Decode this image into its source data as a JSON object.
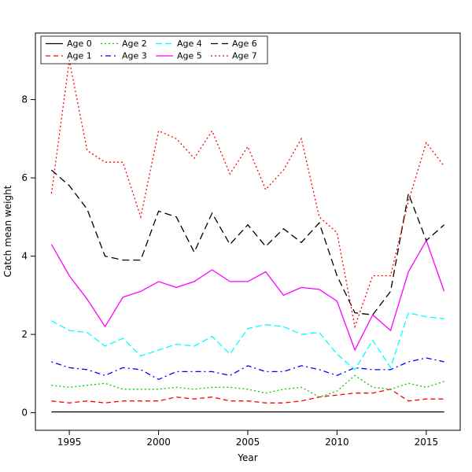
{
  "chart_data": {
    "type": "line",
    "title": "",
    "xlabel": "Year",
    "ylabel": "Catch mean weight",
    "xlim": [
      1993.1,
      2016.9
    ],
    "ylim": [
      -0.45,
      9.7
    ],
    "x_ticks": [
      1995,
      2000,
      2005,
      2010,
      2015
    ],
    "y_ticks": [
      0,
      2,
      4,
      6,
      8
    ],
    "grid": false,
    "legend_position": "top-left",
    "x": [
      1994,
      1995,
      1996,
      1997,
      1998,
      1999,
      2000,
      2001,
      2002,
      2003,
      2004,
      2005,
      2006,
      2007,
      2008,
      2009,
      2010,
      2011,
      2012,
      2013,
      2014,
      2015,
      2016
    ],
    "series": [
      {
        "name": "Age 0",
        "color": "#000000",
        "linestyle": "solid",
        "values": [
          0.02,
          0.02,
          0.02,
          0.02,
          0.02,
          0.02,
          0.02,
          0.02,
          0.02,
          0.02,
          0.02,
          0.02,
          0.02,
          0.02,
          0.02,
          0.02,
          0.02,
          0.02,
          0.02,
          0.02,
          0.02,
          0.02,
          0.02
        ]
      },
      {
        "name": "Age 1",
        "color": "#FF0000",
        "linestyle": "dashed",
        "values": [
          0.3,
          0.25,
          0.3,
          0.25,
          0.3,
          0.3,
          0.3,
          0.4,
          0.35,
          0.4,
          0.3,
          0.3,
          0.25,
          0.25,
          0.3,
          0.4,
          0.45,
          0.5,
          0.5,
          0.6,
          0.3,
          0.35,
          0.35
        ]
      },
      {
        "name": "Age 2",
        "color": "#00CD00",
        "linestyle": "dotted",
        "values": [
          0.7,
          0.65,
          0.7,
          0.75,
          0.6,
          0.6,
          0.6,
          0.65,
          0.6,
          0.65,
          0.65,
          0.6,
          0.5,
          0.6,
          0.65,
          0.4,
          0.55,
          0.95,
          0.65,
          0.6,
          0.75,
          0.65,
          0.8
        ]
      },
      {
        "name": "Age 3",
        "color": "#0000FF",
        "linestyle": "dashdot",
        "values": [
          1.3,
          1.15,
          1.1,
          0.95,
          1.15,
          1.1,
          0.85,
          1.05,
          1.05,
          1.05,
          0.95,
          1.2,
          1.05,
          1.05,
          1.2,
          1.1,
          0.95,
          1.15,
          1.1,
          1.1,
          1.3,
          1.4,
          1.3
        ]
      },
      {
        "name": "Age 4",
        "color": "#00FFFF",
        "linestyle": "longdash",
        "values": [
          2.35,
          2.1,
          2.05,
          1.7,
          1.9,
          1.45,
          1.6,
          1.75,
          1.7,
          1.95,
          1.5,
          2.15,
          2.25,
          2.2,
          2.0,
          2.05,
          1.5,
          1.1,
          1.85,
          1.15,
          2.55,
          2.45,
          2.4
        ]
      },
      {
        "name": "Age 5",
        "color": "#FF00FF",
        "linestyle": "solid",
        "values": [
          4.3,
          3.5,
          2.9,
          2.2,
          2.95,
          3.1,
          3.35,
          3.2,
          3.35,
          3.65,
          3.35,
          3.35,
          3.6,
          3.0,
          3.2,
          3.15,
          2.85,
          1.6,
          2.5,
          2.1,
          3.6,
          4.4,
          3.1
        ]
      },
      {
        "name": "Age 6",
        "color": "#000000",
        "linestyle": "longdash2",
        "values": [
          6.2,
          5.8,
          5.2,
          4.0,
          3.9,
          3.9,
          5.15,
          5.0,
          4.1,
          5.1,
          4.3,
          4.8,
          4.25,
          4.7,
          4.35,
          4.85,
          3.5,
          2.55,
          2.5,
          3.1,
          5.6,
          4.4,
          4.8
        ]
      },
      {
        "name": "Age 7",
        "color": "#FF0000",
        "linestyle": "dotted",
        "values": [
          5.6,
          9.0,
          6.7,
          6.4,
          6.4,
          5.0,
          7.2,
          7.0,
          6.5,
          7.2,
          6.1,
          6.8,
          5.7,
          6.2,
          7.0,
          5.0,
          4.6,
          2.2,
          3.5,
          3.5,
          5.4,
          6.9,
          6.3
        ]
      }
    ]
  }
}
